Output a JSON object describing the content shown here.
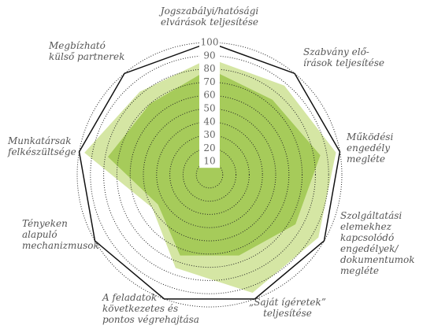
{
  "chart_data": {
    "type": "radar",
    "categories": [
      [
        "Jogszabályi/hatósági",
        "elvárások teljesítése"
      ],
      [
        "Szabvány elő-",
        "írások teljesítése"
      ],
      [
        "Működési",
        "engedély",
        "megléte"
      ],
      [
        "Szolgáltatási",
        "elemekhez",
        "kapcsolódó",
        "engedélyek/",
        "dokumentumok",
        "megléte"
      ],
      [
        "„Saját ígéretek”",
        "teljesítése"
      ],
      [
        "A feladatok",
        "következetes és",
        "pontos végrehajtása"
      ],
      [
        "Tényeken",
        "alapuló",
        "mechanizmusok"
      ],
      [
        "Munkatársak",
        "felkészültsége"
      ],
      [
        "Megbízható",
        "külső partnerek"
      ]
    ],
    "series": [
      {
        "color": "#d5e6a4",
        "values": [
          88,
          88,
          97,
          95,
          95,
          75,
          50,
          96,
          82
        ]
      },
      {
        "color": "#a6cb5a",
        "values": [
          80,
          74,
          85,
          75,
          65,
          65,
          45,
          78,
          70
        ]
      }
    ],
    "ylim": [
      0,
      100
    ],
    "yticks": [
      10,
      20,
      30,
      40,
      50,
      60,
      70,
      80,
      90,
      100
    ],
    "grid": true
  }
}
